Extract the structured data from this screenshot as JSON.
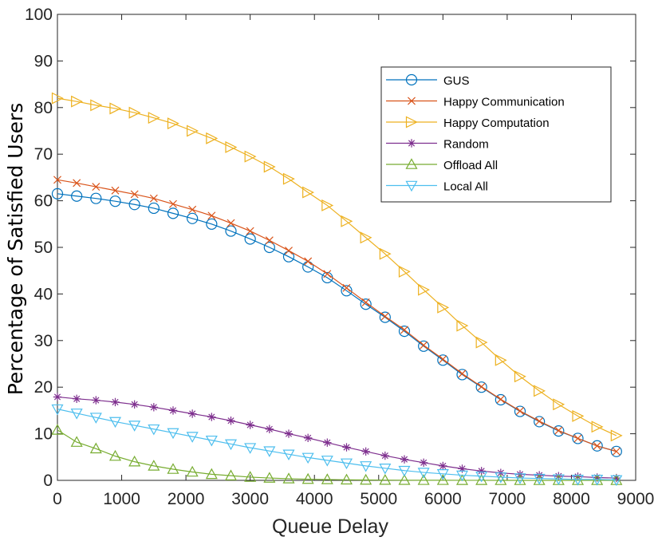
{
  "chart_data": {
    "type": "line",
    "title": "",
    "xlabel": "Queue Delay",
    "ylabel": "Percentage  of Satisfied Users",
    "xlim": [
      0,
      9000
    ],
    "ylim": [
      0,
      100
    ],
    "xticks": [
      0,
      1000,
      2000,
      3000,
      4000,
      5000,
      6000,
      7000,
      8000,
      9000
    ],
    "yticks": [
      0,
      10,
      20,
      30,
      40,
      50,
      60,
      70,
      80,
      90,
      100
    ],
    "grid": false,
    "legend_position": "top-right",
    "x": [
      0,
      300,
      600,
      900,
      1200,
      1500,
      1800,
      2100,
      2400,
      2700,
      3000,
      3300,
      3600,
      3900,
      4200,
      4500,
      4800,
      5100,
      5400,
      5700,
      6000,
      6300,
      6600,
      6900,
      7200,
      7500,
      7800,
      8100,
      8400,
      8700
    ],
    "series": [
      {
        "name": "GUS",
        "color": "#0072BD",
        "marker": "circle",
        "values": [
          61.5,
          61.0,
          60.5,
          59.9,
          59.2,
          58.4,
          57.3,
          56.2,
          55.0,
          53.5,
          51.8,
          50.0,
          48.0,
          45.8,
          43.5,
          40.7,
          37.8,
          35.0,
          32.0,
          28.8,
          25.8,
          22.7,
          20.0,
          17.3,
          14.8,
          12.6,
          10.6,
          9.0,
          7.4,
          6.2
        ]
      },
      {
        "name": "Happy Communication",
        "color": "#D95319",
        "marker": "x",
        "values": [
          64.5,
          63.8,
          63.0,
          62.2,
          61.4,
          60.5,
          59.3,
          58.1,
          56.8,
          55.2,
          53.5,
          51.5,
          49.3,
          47.0,
          44.3,
          41.3,
          38.2,
          35.2,
          32.3,
          29.0,
          26.0,
          22.9,
          20.1,
          17.4,
          14.9,
          12.7,
          10.7,
          9.0,
          7.4,
          6.2
        ]
      },
      {
        "name": "Happy Computation",
        "color": "#EDB120",
        "marker": "triangle-right",
        "values": [
          82.0,
          81.3,
          80.5,
          79.8,
          78.9,
          77.8,
          76.6,
          75.0,
          73.4,
          71.5,
          69.5,
          67.3,
          64.7,
          61.8,
          59.0,
          55.6,
          52.1,
          48.6,
          44.8,
          40.9,
          37.1,
          33.2,
          29.6,
          25.8,
          22.3,
          19.2,
          16.3,
          13.8,
          11.5,
          9.6
        ]
      },
      {
        "name": "Random",
        "color": "#7E2F8E",
        "marker": "asterisk",
        "values": [
          17.9,
          17.5,
          17.2,
          16.8,
          16.3,
          15.7,
          15.0,
          14.3,
          13.6,
          12.8,
          11.9,
          11.0,
          10.0,
          9.1,
          8.1,
          7.1,
          6.2,
          5.3,
          4.5,
          3.8,
          3.1,
          2.5,
          2.0,
          1.6,
          1.3,
          1.1,
          0.9,
          0.8,
          0.6,
          0.5
        ]
      },
      {
        "name": "Offload All",
        "color": "#77AC30",
        "marker": "triangle-up",
        "values": [
          10.8,
          8.2,
          6.8,
          5.2,
          4.0,
          3.1,
          2.4,
          1.8,
          1.3,
          1.0,
          0.7,
          0.5,
          0.35,
          0.25,
          0.18,
          0.12,
          0.08,
          0.05,
          0.03,
          0.02,
          0.02,
          0.01,
          0.01,
          0.0,
          0.0,
          0.0,
          0.0,
          0.0,
          0.0,
          0.0
        ]
      },
      {
        "name": "Local All",
        "color": "#4DBEEE",
        "marker": "triangle-down",
        "values": [
          15.3,
          14.4,
          13.5,
          12.6,
          11.8,
          11.0,
          10.2,
          9.4,
          8.6,
          7.8,
          7.0,
          6.3,
          5.6,
          4.9,
          4.3,
          3.7,
          3.1,
          2.6,
          2.1,
          1.7,
          1.4,
          1.1,
          0.9,
          0.7,
          0.5,
          0.4,
          0.3,
          0.2,
          0.2,
          0.1
        ]
      }
    ]
  }
}
